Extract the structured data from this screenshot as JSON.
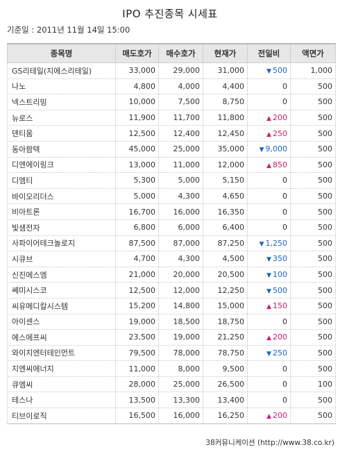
{
  "title": "IPO 추진종목 시세표",
  "base_date": "기준일 : 2011년 11월 14일 15:00",
  "headers": [
    "종목명",
    "매도호가",
    "매수호가",
    "현재가",
    "전일비",
    "액면가"
  ],
  "rows": [
    {
      "name": "GS리테일(지에스리테일)",
      "ask": "33,000",
      "bid": "29,000",
      "price": "31,000",
      "change": "500",
      "dir": "down",
      "par": "1,000"
    },
    {
      "name": "나노",
      "ask": "4,800",
      "bid": "4,000",
      "price": "4,400",
      "change": "0",
      "dir": "flat",
      "par": "500"
    },
    {
      "name": "넥스트리밍",
      "ask": "10,000",
      "bid": "7,500",
      "price": "8,750",
      "change": "0",
      "dir": "flat",
      "par": "500"
    },
    {
      "name": "뉴로스",
      "ask": "11,900",
      "bid": "11,700",
      "price": "11,800",
      "change": "200",
      "dir": "up",
      "par": "500"
    },
    {
      "name": "덴티움",
      "ask": "12,500",
      "bid": "12,400",
      "price": "12,450",
      "change": "250",
      "dir": "up",
      "par": "500"
    },
    {
      "name": "동아팜텍",
      "ask": "45,000",
      "bid": "25,000",
      "price": "35,000",
      "change": "9,000",
      "dir": "down",
      "par": "500"
    },
    {
      "name": "디엔에이링크",
      "ask": "13,000",
      "bid": "11,000",
      "price": "12,000",
      "change": "850",
      "dir": "up",
      "par": "500"
    },
    {
      "name": "디엠티",
      "ask": "5,300",
      "bid": "5,000",
      "price": "5,150",
      "change": "0",
      "dir": "flat",
      "par": "500"
    },
    {
      "name": "바이오리더스",
      "ask": "5,000",
      "bid": "4,300",
      "price": "4,650",
      "change": "0",
      "dir": "flat",
      "par": "500"
    },
    {
      "name": "비아트론",
      "ask": "16,700",
      "bid": "16,000",
      "price": "16,350",
      "change": "0",
      "dir": "flat",
      "par": "500"
    },
    {
      "name": "빛샘전자",
      "ask": "6,800",
      "bid": "6,000",
      "price": "6,400",
      "change": "0",
      "dir": "flat",
      "par": "500"
    },
    {
      "name": "사파이어테크놀로지",
      "ask": "87,500",
      "bid": "87,000",
      "price": "87,250",
      "change": "1,250",
      "dir": "down",
      "par": "500"
    },
    {
      "name": "시큐브",
      "ask": "4,700",
      "bid": "4,300",
      "price": "4,500",
      "change": "350",
      "dir": "down",
      "par": "500"
    },
    {
      "name": "신진에스엠",
      "ask": "21,000",
      "bid": "20,000",
      "price": "20,500",
      "change": "100",
      "dir": "down",
      "par": "500"
    },
    {
      "name": "쎄미시스코",
      "ask": "12,500",
      "bid": "12,000",
      "price": "12,250",
      "change": "500",
      "dir": "down",
      "par": "500"
    },
    {
      "name": "씨유메디칼시스템",
      "ask": "15,200",
      "bid": "14,800",
      "price": "15,000",
      "change": "150",
      "dir": "up",
      "par": "500"
    },
    {
      "name": "아이센스",
      "ask": "19,000",
      "bid": "18,500",
      "price": "18,750",
      "change": "0",
      "dir": "flat",
      "par": "500"
    },
    {
      "name": "에스에프씨",
      "ask": "23,500",
      "bid": "19,000",
      "price": "21,250",
      "change": "200",
      "dir": "up",
      "par": "500"
    },
    {
      "name": "와이지엔터테인먼트",
      "ask": "79,500",
      "bid": "78,000",
      "price": "78,750",
      "change": "250",
      "dir": "down",
      "par": "500"
    },
    {
      "name": "지엔씨에너지",
      "ask": "11,000",
      "bid": "8,000",
      "price": "9,500",
      "change": "0",
      "dir": "flat",
      "par": "500"
    },
    {
      "name": "큐엠씨",
      "ask": "28,000",
      "bid": "25,000",
      "price": "26,500",
      "change": "0",
      "dir": "flat",
      "par": "100"
    },
    {
      "name": "테스나",
      "ask": "13,500",
      "bid": "13,300",
      "price": "13,400",
      "change": "0",
      "dir": "flat",
      "par": "500"
    },
    {
      "name": "티브이로직",
      "ask": "16,500",
      "bid": "16,000",
      "price": "16,250",
      "change": "200",
      "dir": "up",
      "par": "500"
    }
  ],
  "arrows": {
    "up": "▲",
    "down": "▼"
  },
  "colors": {
    "up": "#c81d6e",
    "down": "#1c64c4"
  },
  "source": "38커뮤니케이션 (http://www.38.co.kr)"
}
